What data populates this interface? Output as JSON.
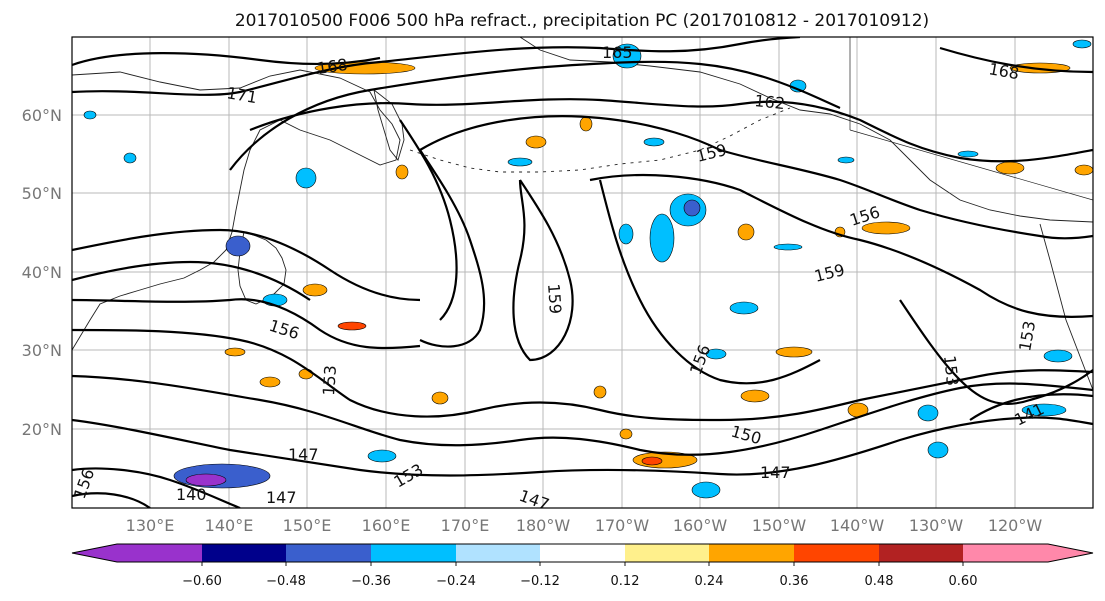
{
  "title": "2017010500 F006 500 hPa refract., precipitation PC (2017010812 - 2017010912)",
  "map": {
    "lat_labels": [
      "60°N",
      "50°N",
      "40°N",
      "30°N",
      "20°N"
    ],
    "lon_labels": [
      "130°E",
      "140°E",
      "150°E",
      "160°E",
      "170°E",
      "180°W",
      "170°W",
      "160°W",
      "150°W",
      "140°W",
      "130°W",
      "120°W"
    ],
    "contour_labels": [
      "171",
      "168",
      "165",
      "168",
      "162",
      "159",
      "156",
      "159",
      "159",
      "156",
      "153",
      "147",
      "156",
      "153",
      "150",
      "147",
      "147",
      "147",
      "140",
      "141",
      "153",
      "153",
      "156"
    ],
    "gridline_color": "#b8b8b8"
  },
  "colorbar": {
    "colors": [
      "#9932cc",
      "#00008b",
      "#3a5fcd",
      "#00bfff",
      "#b0e2ff",
      "#ffffff",
      "#fff08c",
      "#ffa500",
      "#ff4500",
      "#b22222",
      "#ff88aa"
    ],
    "tick_labels": [
      "−0.60",
      "−0.48",
      "−0.36",
      "−0.24",
      "−0.12",
      "0.12",
      "0.24",
      "0.36",
      "0.48",
      "0.60"
    ]
  }
}
